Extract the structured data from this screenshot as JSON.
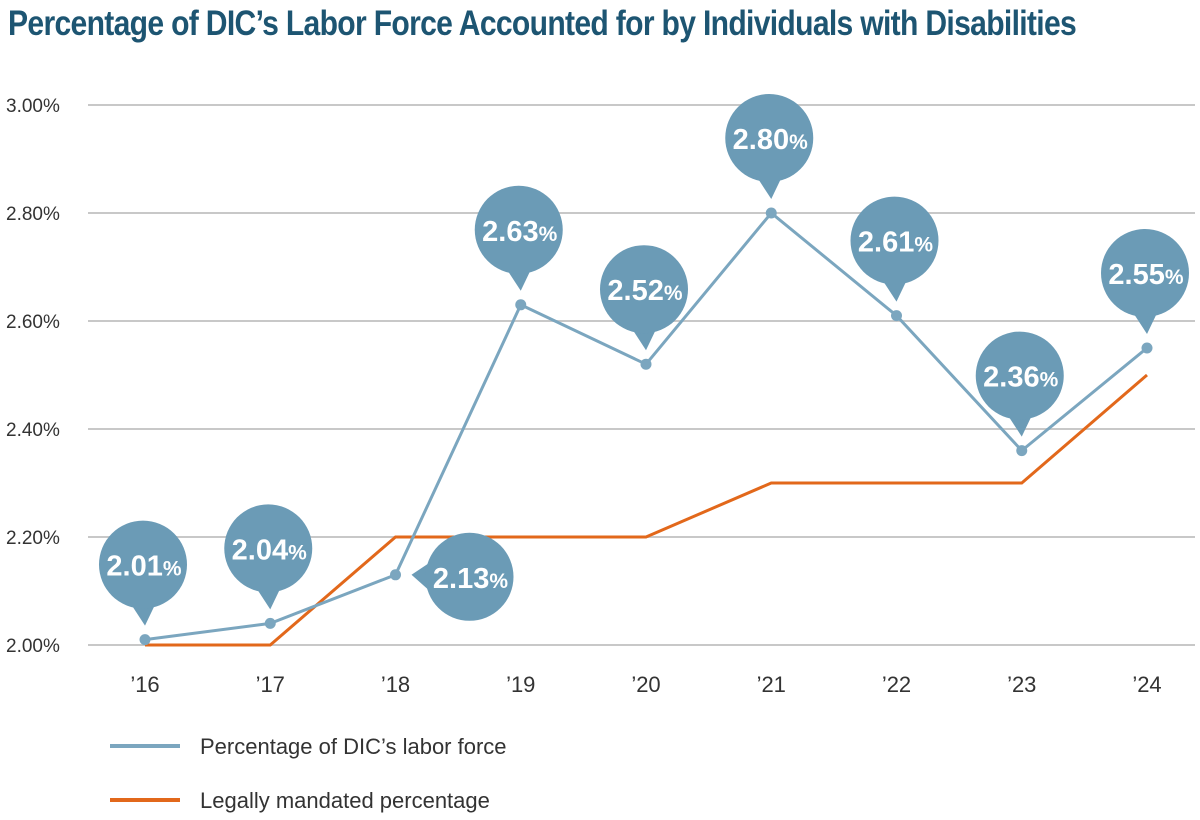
{
  "chart_data": {
    "type": "line",
    "title": "Percentage of DIC’s Labor Force Accounted for by Individuals with Disabilities",
    "categories": [
      "’16",
      "’17",
      "’18",
      "’19",
      "’20",
      "’21",
      "’22",
      "’23",
      "’24"
    ],
    "yticks": [
      "2.00%",
      "2.20%",
      "2.40%",
      "2.60%",
      "2.80%",
      "3.00%"
    ],
    "ylim": [
      2.0,
      3.0
    ],
    "grid": true,
    "legend_position": "bottom-left",
    "series": [
      {
        "name": "Percentage of DIC’s labor force",
        "color": "#7ba6bf",
        "values": [
          2.01,
          2.04,
          2.13,
          2.63,
          2.52,
          2.8,
          2.61,
          2.36,
          2.55
        ],
        "labels": [
          "2.01",
          "2.04",
          "2.13",
          "2.63",
          "2.52",
          "2.80",
          "2.61",
          "2.36",
          "2.55"
        ]
      },
      {
        "name": "Legally mandated percentage",
        "color": "#e2681b",
        "values": [
          2.0,
          2.0,
          2.2,
          2.2,
          2.2,
          2.3,
          2.3,
          2.3,
          2.5
        ]
      }
    ],
    "label_unit": "%",
    "bubble_color": "#6b9bb6"
  }
}
